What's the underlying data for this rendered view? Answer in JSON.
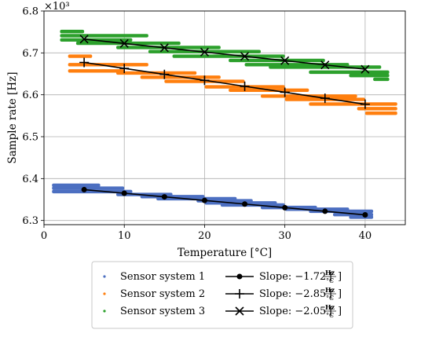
{
  "chart_data": {
    "type": "scatter",
    "title": "",
    "xlabel": "Temperature [°C]",
    "ylabel": "Sample rate [Hz]",
    "y_multiplier_label": "×10³",
    "xlim": [
      0,
      45
    ],
    "ylim": [
      6.29,
      6.8
    ],
    "x_ticks": [
      0,
      10,
      20,
      30,
      40
    ],
    "y_ticks": [
      6.3,
      6.4,
      6.5,
      6.6,
      6.7,
      6.8
    ],
    "grid": true,
    "legend_position": "bottom",
    "series": [
      {
        "name": "Sensor system 1",
        "kind": "scatter",
        "color": "#4c6fc1",
        "steps": [
          {
            "x": [
              1,
              7
            ],
            "y": 6.384
          },
          {
            "x": [
              1,
              10
            ],
            "y": 6.377
          },
          {
            "x": [
              1,
              11
            ],
            "y": 6.369
          },
          {
            "x": [
              9,
              16
            ],
            "y": 6.362
          },
          {
            "x": [
              12,
              20
            ],
            "y": 6.357
          },
          {
            "x": [
              14,
              24
            ],
            "y": 6.352
          },
          {
            "x": [
              19,
              26
            ],
            "y": 6.347
          },
          {
            "x": [
              20,
              29
            ],
            "y": 6.342
          },
          {
            "x": [
              22,
              30
            ],
            "y": 6.337
          },
          {
            "x": [
              27,
              34
            ],
            "y": 6.331
          },
          {
            "x": [
              30,
              38
            ],
            "y": 6.327
          },
          {
            "x": [
              33,
              41
            ],
            "y": 6.322
          },
          {
            "x": [
              36,
              41
            ],
            "y": 6.314
          },
          {
            "x": [
              38,
              41
            ],
            "y": 6.308
          }
        ]
      },
      {
        "name": "Sensor system 2",
        "kind": "scatter",
        "color": "#ff7f0e",
        "steps": [
          {
            "x": [
              3,
              6
            ],
            "y": 6.692
          },
          {
            "x": [
              3,
              13
            ],
            "y": 6.672
          },
          {
            "x": [
              3,
              10
            ],
            "y": 6.657
          },
          {
            "x": [
              9,
              19
            ],
            "y": 6.652
          },
          {
            "x": [
              12,
              22
            ],
            "y": 6.642
          },
          {
            "x": [
              15,
              25
            ],
            "y": 6.632
          },
          {
            "x": [
              20,
              30
            ],
            "y": 6.619
          },
          {
            "x": [
              23,
              33
            ],
            "y": 6.611
          },
          {
            "x": [
              27,
              39
            ],
            "y": 6.597
          },
          {
            "x": [
              30,
              40
            ],
            "y": 6.589
          },
          {
            "x": [
              33,
              44
            ],
            "y": 6.578
          },
          {
            "x": [
              39,
              44
            ],
            "y": 6.567
          },
          {
            "x": [
              40,
              44
            ],
            "y": 6.556
          }
        ]
      },
      {
        "name": "Sensor system 3",
        "kind": "scatter",
        "color": "#2ca02c",
        "steps": [
          {
            "x": [
              2,
              5
            ],
            "y": 6.751
          },
          {
            "x": [
              2,
              13
            ],
            "y": 6.741
          },
          {
            "x": [
              2,
              11
            ],
            "y": 6.731
          },
          {
            "x": [
              4,
              17
            ],
            "y": 6.723
          },
          {
            "x": [
              9,
              22
            ],
            "y": 6.713
          },
          {
            "x": [
              13,
              27
            ],
            "y": 6.703
          },
          {
            "x": [
              16,
              30
            ],
            "y": 6.692
          },
          {
            "x": [
              23,
              35
            ],
            "y": 6.682
          },
          {
            "x": [
              25,
              38
            ],
            "y": 6.672
          },
          {
            "x": [
              28,
              42
            ],
            "y": 6.666
          },
          {
            "x": [
              33,
              43
            ],
            "y": 6.654
          },
          {
            "x": [
              38,
              43
            ],
            "y": 6.646
          },
          {
            "x": [
              41,
              43
            ],
            "y": 6.637
          }
        ]
      },
      {
        "name": "Slope: −1.72 [Hz/°C]",
        "kind": "line",
        "marker": "circle",
        "color": "#000000",
        "x": [
          5,
          10,
          15,
          20,
          25,
          30,
          35,
          40
        ],
        "y": [
          6.3736,
          6.365,
          6.3564,
          6.3478,
          6.3392,
          6.3306,
          6.322,
          6.3134
        ]
      },
      {
        "name": "Slope: −2.85 [Hz/°C]",
        "kind": "line",
        "marker": "plus",
        "color": "#000000",
        "x": [
          5,
          10,
          15,
          20,
          25,
          30,
          35,
          40
        ],
        "y": [
          6.6772,
          6.663,
          6.6487,
          6.6345,
          6.6202,
          6.606,
          6.5917,
          6.5775
        ]
      },
      {
        "name": "Slope: −2.05 [Hz/°C]",
        "kind": "line",
        "marker": "x",
        "color": "#000000",
        "x": [
          5,
          10,
          15,
          20,
          25,
          30,
          35,
          40
        ],
        "y": [
          6.7328,
          6.7225,
          6.7123,
          6.702,
          6.6918,
          6.6815,
          6.6713,
          6.661
        ]
      }
    ],
    "legend": {
      "left": [
        {
          "label": "Sensor system 1",
          "color": "#4c6fc1"
        },
        {
          "label": "Sensor system 2",
          "color": "#ff7f0e"
        },
        {
          "label": "Sensor system 3",
          "color": "#2ca02c"
        }
      ],
      "right": [
        {
          "prefix": "Slope: −1.72 [",
          "num": "Hz",
          "den": "°C",
          "suffix": "]",
          "marker": "circle"
        },
        {
          "prefix": "Slope: −2.85 [",
          "num": "Hz",
          "den": "°C",
          "suffix": "]",
          "marker": "plus"
        },
        {
          "prefix": "Slope: −2.05 [",
          "num": "Hz",
          "den": "°C",
          "suffix": "]",
          "marker": "x"
        }
      ]
    }
  }
}
